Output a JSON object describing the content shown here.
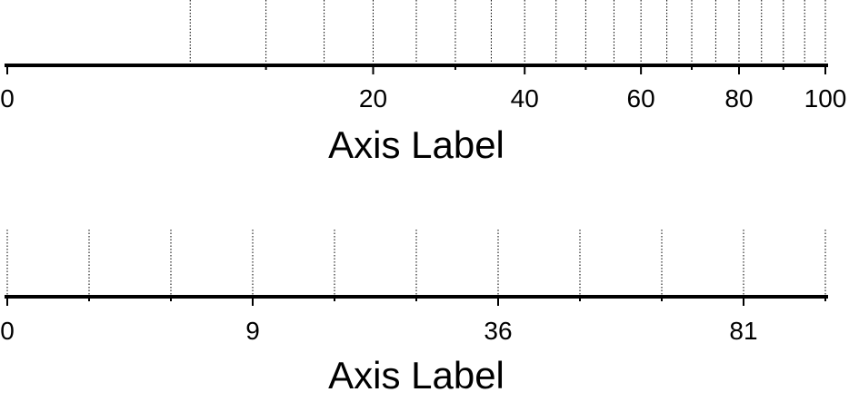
{
  "chart_data": [
    {
      "type": "axis",
      "scale": "sqrt",
      "xlim": [
        0,
        100
      ],
      "xlabel": "Axis Label",
      "tick_values": [
        0,
        20,
        40,
        60,
        80,
        100
      ],
      "tick_labels": [
        "0",
        "20",
        "40",
        "60",
        "80",
        "100"
      ],
      "minor_tick_values": [
        10,
        30,
        50,
        70,
        90
      ],
      "grid_values": [
        5,
        10,
        15,
        20,
        25,
        30,
        35,
        40,
        45,
        50,
        55,
        60,
        65,
        70,
        75,
        80,
        85,
        90,
        95,
        100
      ],
      "grid": "dotted"
    },
    {
      "type": "axis",
      "scale": "linear",
      "xlim": [
        0,
        100
      ],
      "xlabel": "Axis Label",
      "tick_values": [
        0,
        30,
        60,
        90
      ],
      "tick_labels": [
        "0",
        "9",
        "36",
        "81"
      ],
      "minor_tick_values": [
        10,
        20,
        40,
        50,
        70,
        80,
        100
      ],
      "grid_values": [
        0,
        10,
        20,
        30,
        40,
        50,
        60,
        70,
        80,
        90,
        100
      ],
      "grid": "dotted"
    }
  ]
}
